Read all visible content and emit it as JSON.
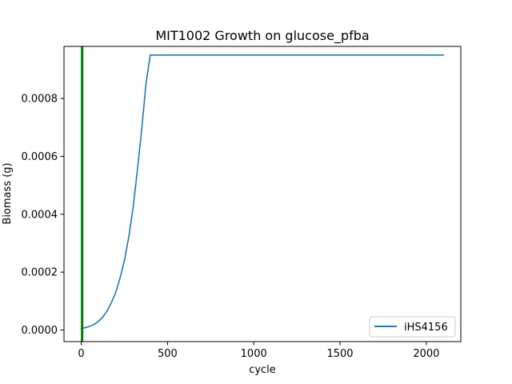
{
  "chart_data": {
    "type": "line",
    "title": "MIT1002 Growth on glucose_pfba",
    "xlabel": "cycle",
    "ylabel": "Biomass (g)",
    "xlim": [
      -100,
      2200
    ],
    "ylim": [
      -4e-05,
      0.00098
    ],
    "xticks": [
      0,
      500,
      1000,
      1500,
      2000
    ],
    "xtick_labels": [
      "0",
      "500",
      "1000",
      "1500",
      "2000"
    ],
    "yticks": [
      0,
      0.0002,
      0.0004,
      0.0006,
      0.0008
    ],
    "ytick_labels": [
      "0.0000",
      "0.0002",
      "0.0004",
      "0.0006",
      "0.0008"
    ],
    "grid": false,
    "legend_position": "lower right",
    "vline": {
      "x": 5,
      "color": "#008000"
    },
    "series": [
      {
        "name": "iHS4156",
        "color": "#1f77b4",
        "x": [
          0,
          25,
          50,
          75,
          100,
          125,
          150,
          175,
          200,
          225,
          250,
          275,
          300,
          325,
          350,
          375,
          400,
          425,
          450,
          500,
          1000,
          1500,
          2000,
          2100
        ],
        "y": [
          5.5e-06,
          8.5e-06,
          1.3e-05,
          2e-05,
          3e-05,
          4.5e-05,
          6.6e-05,
          9.5e-05,
          0.00013,
          0.00018,
          0.00024,
          0.00032,
          0.00042,
          0.00055,
          0.00069,
          0.00085,
          0.00095,
          0.00095,
          0.00095,
          0.00095,
          0.00095,
          0.00095,
          0.00095,
          0.00095
        ]
      }
    ]
  }
}
